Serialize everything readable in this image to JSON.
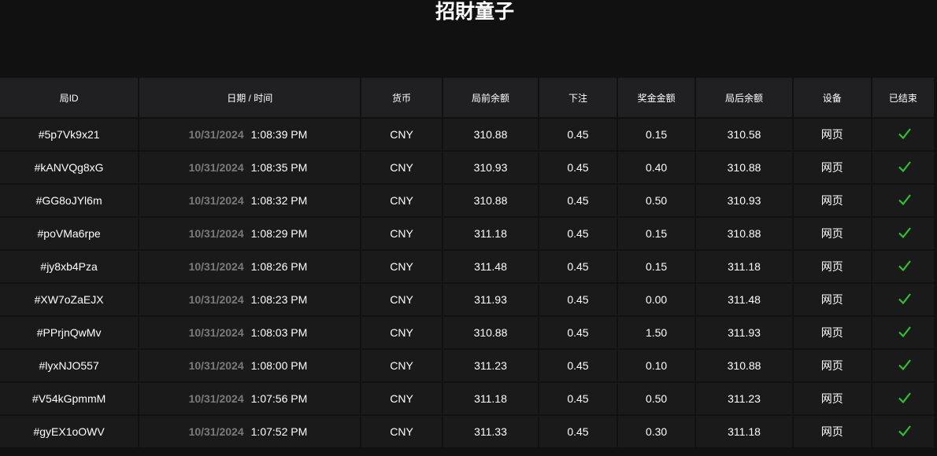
{
  "title": "招財童子",
  "columns": [
    "局ID",
    "日期 / 时间",
    "货币",
    "局前余额",
    "下注",
    "奖金金额",
    "局后余额",
    "设备",
    "已结束"
  ],
  "accent_check": "#2ec22e",
  "rows": [
    {
      "id": "#5p7Vk9x21",
      "date": "10/31/2024",
      "time": "1:08:39 PM",
      "currency": "CNY",
      "before": "310.88",
      "bet": "0.45",
      "win": "0.15",
      "after": "310.58",
      "device": "网页",
      "finished": true
    },
    {
      "id": "#kANVQg8xG",
      "date": "10/31/2024",
      "time": "1:08:35 PM",
      "currency": "CNY",
      "before": "310.93",
      "bet": "0.45",
      "win": "0.40",
      "after": "310.88",
      "device": "网页",
      "finished": true
    },
    {
      "id": "#GG8oJYl6m",
      "date": "10/31/2024",
      "time": "1:08:32 PM",
      "currency": "CNY",
      "before": "310.88",
      "bet": "0.45",
      "win": "0.50",
      "after": "310.93",
      "device": "网页",
      "finished": true
    },
    {
      "id": "#poVMa6rpe",
      "date": "10/31/2024",
      "time": "1:08:29 PM",
      "currency": "CNY",
      "before": "311.18",
      "bet": "0.45",
      "win": "0.15",
      "after": "310.88",
      "device": "网页",
      "finished": true
    },
    {
      "id": "#jy8xb4Pza",
      "date": "10/31/2024",
      "time": "1:08:26 PM",
      "currency": "CNY",
      "before": "311.48",
      "bet": "0.45",
      "win": "0.15",
      "after": "311.18",
      "device": "网页",
      "finished": true
    },
    {
      "id": "#XW7oZaEJX",
      "date": "10/31/2024",
      "time": "1:08:23 PM",
      "currency": "CNY",
      "before": "311.93",
      "bet": "0.45",
      "win": "0.00",
      "after": "311.48",
      "device": "网页",
      "finished": true
    },
    {
      "id": "#PPrjnQwMv",
      "date": "10/31/2024",
      "time": "1:08:03 PM",
      "currency": "CNY",
      "before": "310.88",
      "bet": "0.45",
      "win": "1.50",
      "after": "311.93",
      "device": "网页",
      "finished": true
    },
    {
      "id": "#lyxNJO557",
      "date": "10/31/2024",
      "time": "1:08:00 PM",
      "currency": "CNY",
      "before": "311.23",
      "bet": "0.45",
      "win": "0.10",
      "after": "310.88",
      "device": "网页",
      "finished": true
    },
    {
      "id": "#V54kGpmmM",
      "date": "10/31/2024",
      "time": "1:07:56 PM",
      "currency": "CNY",
      "before": "311.18",
      "bet": "0.45",
      "win": "0.50",
      "after": "311.23",
      "device": "网页",
      "finished": true
    },
    {
      "id": "#gyEX1oOWV",
      "date": "10/31/2024",
      "time": "1:07:52 PM",
      "currency": "CNY",
      "before": "311.33",
      "bet": "0.45",
      "win": "0.30",
      "after": "311.18",
      "device": "网页",
      "finished": true
    }
  ]
}
